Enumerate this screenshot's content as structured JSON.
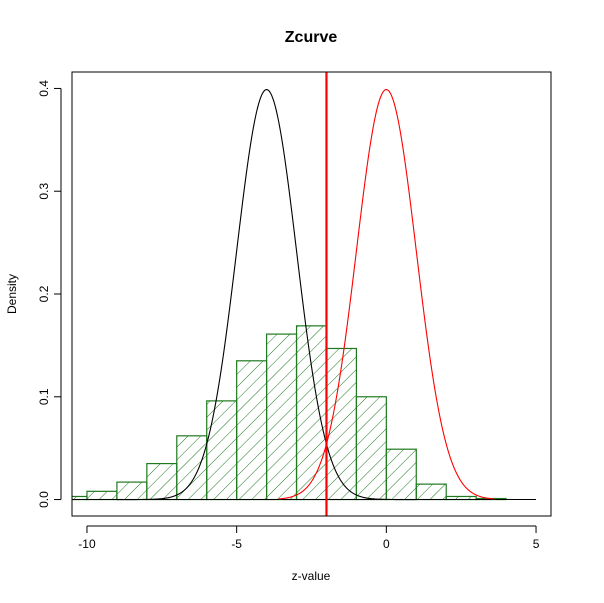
{
  "chart_data": {
    "type": "bar",
    "title": "Zcurve",
    "xlabel": "z-value",
    "ylabel": "Density",
    "xlim": [
      -10.5,
      5.5
    ],
    "ylim": [
      -0.016,
      0.416
    ],
    "xticks": [
      "-10",
      "-5",
      "0",
      "5"
    ],
    "xtick_values": [
      -10,
      -5,
      0,
      5
    ],
    "yticks": [
      "0.0",
      "0.1",
      "0.2",
      "0.3",
      "0.4"
    ],
    "ytick_values": [
      0,
      0.1,
      0.2,
      0.3,
      0.4
    ],
    "grid": false,
    "histogram": {
      "bin_width": 1,
      "bin_starts": [
        -11,
        -10,
        -9,
        -8,
        -7,
        -6,
        -5,
        -4,
        -3,
        -2,
        -1,
        0,
        1,
        2,
        3
      ],
      "values": [
        0.003,
        0.008,
        0.017,
        0.035,
        0.062,
        0.096,
        0.135,
        0.161,
        0.169,
        0.147,
        0.1,
        0.049,
        0.015,
        0.003,
        0.001
      ],
      "border_color": "#1f7a1f",
      "hatch_color": "#1f7a1f"
    },
    "curves": [
      {
        "mean": -4,
        "sd": 1,
        "color": "#000000",
        "range": [
          -9,
          1
        ]
      },
      {
        "mean": 0,
        "sd": 1,
        "color": "#ff0000",
        "range": [
          -3.6,
          3.6
        ]
      }
    ],
    "baseline": {
      "from": -10.5,
      "to": 5,
      "color": "#000000"
    },
    "vline": {
      "x": -2,
      "color": "#ff0000"
    }
  }
}
